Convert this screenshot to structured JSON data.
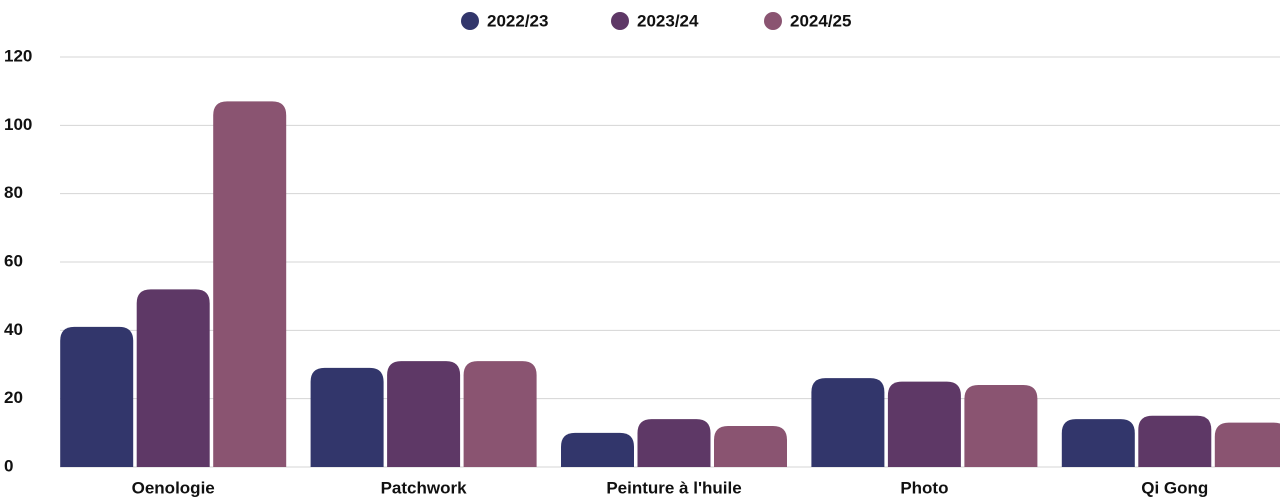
{
  "chart_data": {
    "type": "bar",
    "categories": [
      "Oenologie",
      "Patchwork",
      "Peinture à l'huile",
      "Photo",
      "Qi Gong"
    ],
    "series": [
      {
        "name": "2022/23",
        "color": "#32366b",
        "values": [
          41,
          29,
          10,
          26,
          14
        ]
      },
      {
        "name": "2023/24",
        "color": "#5e3866",
        "values": [
          52,
          31,
          14,
          25,
          15
        ]
      },
      {
        "name": "2024/25",
        "color": "#8a5471",
        "values": [
          107,
          31,
          12,
          24,
          13
        ]
      }
    ],
    "ylim": [
      0,
      120
    ],
    "yticks": [
      0,
      20,
      40,
      60,
      80,
      100,
      120
    ],
    "grid": true,
    "legend": "top"
  }
}
